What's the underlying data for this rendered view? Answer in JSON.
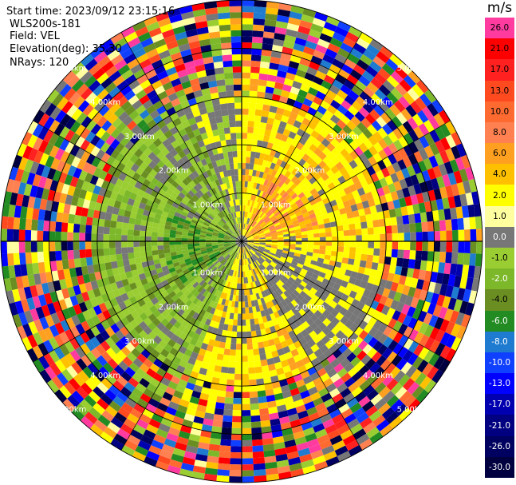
{
  "header": {
    "start_time": "Start time: 2023/09/12 23:15:16",
    "instrument": "WLS200s-181",
    "field": "Field: VEL",
    "elevation": "Elevation(deg): 35.30",
    "nrays": "NRays: 120"
  },
  "colorbar": {
    "unit": "m/s",
    "ticks": [
      {
        "label": "26.0",
        "color": "#ff3ba0"
      },
      {
        "label": "21.0",
        "color": "#ff0000"
      },
      {
        "label": "17.0",
        "color": "#ff2020"
      },
      {
        "label": "13.0",
        "color": "#ff4a20"
      },
      {
        "label": "10.0",
        "color": "#ff6a30"
      },
      {
        "label": "8.0",
        "color": "#ff8050"
      },
      {
        "label": "6.0",
        "color": "#ffa020"
      },
      {
        "label": "4.0",
        "color": "#ffc000"
      },
      {
        "label": "2.0",
        "color": "#ffff00"
      },
      {
        "label": "1.0",
        "color": "#ffffa0"
      },
      {
        "label": "0.0",
        "color": "#777777"
      },
      {
        "label": "-1.0",
        "color": "#9acd32"
      },
      {
        "label": "-2.0",
        "color": "#7cb82a"
      },
      {
        "label": "-4.0",
        "color": "#6b8e23"
      },
      {
        "label": "-6.0",
        "color": "#228b22"
      },
      {
        "label": "-8.0",
        "color": "#1e7bd0"
      },
      {
        "label": "-10.0",
        "color": "#1040ff"
      },
      {
        "label": "-13.0",
        "color": "#0000ff"
      },
      {
        "label": "-17.0",
        "color": "#0000b0"
      },
      {
        "label": "-21.0",
        "color": "#000080"
      },
      {
        "label": "-26.0",
        "color": "#000060"
      },
      {
        "label": "-30.0",
        "color": "#000040"
      }
    ]
  },
  "chart_data": {
    "type": "heatmap",
    "projection": "polar PPI",
    "field": "VEL",
    "unit": "m/s",
    "vmin": -30.0,
    "vmax": 30.0,
    "n_rays": 120,
    "range_rings": [
      {
        "label": "1.00km",
        "range_km": 1.0
      },
      {
        "label": "2.00km",
        "range_km": 2.0
      },
      {
        "label": "3.00km",
        "range_km": 3.0
      },
      {
        "label": "4.00km",
        "range_km": 4.0
      },
      {
        "label": "5.00km",
        "range_km": 5.0
      }
    ],
    "description_regions": [
      {
        "sector": "north-east",
        "dominant_velocity": "positive 1 to 8 m/s"
      },
      {
        "sector": "south",
        "dominant_velocity": "positive 1 to 4 m/s"
      },
      {
        "sector": "west",
        "dominant_velocity": "negative -1 to -6 m/s"
      },
      {
        "sector": "outer ranges",
        "dominant_velocity": "noisy, full range -30 to 26 m/s"
      }
    ]
  }
}
